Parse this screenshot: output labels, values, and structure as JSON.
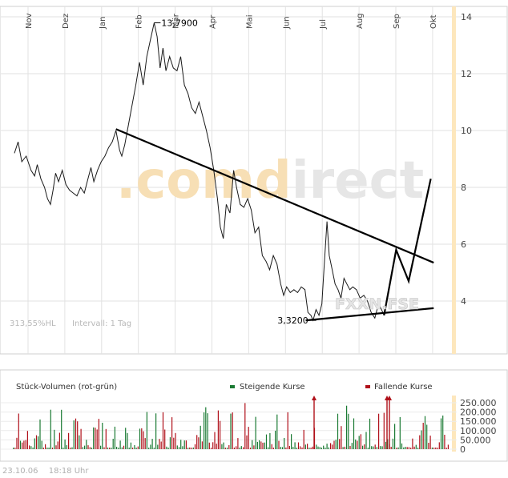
{
  "chart_data": [
    {
      "type": "line",
      "title": "",
      "months": [
        "Nov",
        "Dez",
        "Jan",
        "Feb",
        "Mär",
        "Apr",
        "Mai",
        "Jun",
        "Jul",
        "Aug",
        "Sep",
        "Okt"
      ],
      "yticks": [
        4,
        6,
        8,
        10,
        12,
        14
      ],
      "ylim": [
        2.2,
        14.6
      ],
      "grid": true,
      "price_series": [
        {
          "x": 0.0,
          "y": 9.2
        },
        {
          "x": 0.1,
          "y": 9.6
        },
        {
          "x": 0.2,
          "y": 8.9
        },
        {
          "x": 0.32,
          "y": 9.1
        },
        {
          "x": 0.45,
          "y": 8.6
        },
        {
          "x": 0.55,
          "y": 8.4
        },
        {
          "x": 0.62,
          "y": 8.8
        },
        {
          "x": 0.72,
          "y": 8.3
        },
        {
          "x": 0.82,
          "y": 8.0
        },
        {
          "x": 0.9,
          "y": 7.6
        },
        {
          "x": 0.98,
          "y": 7.4
        },
        {
          "x": 1.05,
          "y": 7.9
        },
        {
          "x": 1.12,
          "y": 8.5
        },
        {
          "x": 1.2,
          "y": 8.2
        },
        {
          "x": 1.3,
          "y": 8.6
        },
        {
          "x": 1.4,
          "y": 8.1
        },
        {
          "x": 1.5,
          "y": 7.9
        },
        {
          "x": 1.6,
          "y": 7.8
        },
        {
          "x": 1.7,
          "y": 7.7
        },
        {
          "x": 1.8,
          "y": 8.0
        },
        {
          "x": 1.9,
          "y": 7.8
        },
        {
          "x": 2.0,
          "y": 8.3
        },
        {
          "x": 2.08,
          "y": 8.7
        },
        {
          "x": 2.16,
          "y": 8.2
        },
        {
          "x": 2.26,
          "y": 8.6
        },
        {
          "x": 2.36,
          "y": 8.9
        },
        {
          "x": 2.46,
          "y": 9.1
        },
        {
          "x": 2.56,
          "y": 9.4
        },
        {
          "x": 2.66,
          "y": 9.6
        },
        {
          "x": 2.76,
          "y": 10.0
        },
        {
          "x": 2.86,
          "y": 9.3
        },
        {
          "x": 2.92,
          "y": 9.1
        },
        {
          "x": 3.0,
          "y": 9.5
        },
        {
          "x": 3.1,
          "y": 10.2
        },
        {
          "x": 3.2,
          "y": 10.9
        },
        {
          "x": 3.3,
          "y": 11.6
        },
        {
          "x": 3.4,
          "y": 12.4
        },
        {
          "x": 3.5,
          "y": 11.6
        },
        {
          "x": 3.6,
          "y": 12.6
        },
        {
          "x": 3.7,
          "y": 13.2
        },
        {
          "x": 3.8,
          "y": 13.79
        },
        {
          "x": 3.88,
          "y": 13.3
        },
        {
          "x": 3.96,
          "y": 12.2
        },
        {
          "x": 4.04,
          "y": 12.9
        },
        {
          "x": 4.12,
          "y": 12.1
        },
        {
          "x": 4.22,
          "y": 12.6
        },
        {
          "x": 4.32,
          "y": 12.2
        },
        {
          "x": 4.42,
          "y": 12.1
        },
        {
          "x": 4.52,
          "y": 12.6
        },
        {
          "x": 4.62,
          "y": 11.6
        },
        {
          "x": 4.72,
          "y": 11.3
        },
        {
          "x": 4.82,
          "y": 10.8
        },
        {
          "x": 4.92,
          "y": 10.6
        },
        {
          "x": 5.02,
          "y": 11.0
        },
        {
          "x": 5.12,
          "y": 10.5
        },
        {
          "x": 5.22,
          "y": 10.0
        },
        {
          "x": 5.32,
          "y": 9.4
        },
        {
          "x": 5.42,
          "y": 8.6
        },
        {
          "x": 5.52,
          "y": 7.6
        },
        {
          "x": 5.6,
          "y": 6.6
        },
        {
          "x": 5.68,
          "y": 6.2
        },
        {
          "x": 5.76,
          "y": 7.4
        },
        {
          "x": 5.86,
          "y": 7.1
        },
        {
          "x": 5.96,
          "y": 8.6
        },
        {
          "x": 6.04,
          "y": 8.0
        },
        {
          "x": 6.14,
          "y": 7.4
        },
        {
          "x": 6.24,
          "y": 7.3
        },
        {
          "x": 6.34,
          "y": 7.6
        },
        {
          "x": 6.44,
          "y": 7.2
        },
        {
          "x": 6.54,
          "y": 6.4
        },
        {
          "x": 6.64,
          "y": 6.6
        },
        {
          "x": 6.74,
          "y": 5.6
        },
        {
          "x": 6.84,
          "y": 5.4
        },
        {
          "x": 6.94,
          "y": 5.1
        },
        {
          "x": 7.04,
          "y": 5.6
        },
        {
          "x": 7.14,
          "y": 5.3
        },
        {
          "x": 7.24,
          "y": 4.6
        },
        {
          "x": 7.32,
          "y": 4.2
        },
        {
          "x": 7.4,
          "y": 4.5
        },
        {
          "x": 7.5,
          "y": 4.3
        },
        {
          "x": 7.6,
          "y": 4.4
        },
        {
          "x": 7.7,
          "y": 4.3
        },
        {
          "x": 7.8,
          "y": 4.5
        },
        {
          "x": 7.9,
          "y": 4.4
        },
        {
          "x": 7.98,
          "y": 3.6
        },
        {
          "x": 8.06,
          "y": 3.5
        },
        {
          "x": 8.12,
          "y": 3.32
        },
        {
          "x": 8.2,
          "y": 3.7
        },
        {
          "x": 8.28,
          "y": 3.5
        },
        {
          "x": 8.36,
          "y": 3.9
        },
        {
          "x": 8.42,
          "y": 5.2
        },
        {
          "x": 8.5,
          "y": 6.8
        },
        {
          "x": 8.56,
          "y": 5.6
        },
        {
          "x": 8.64,
          "y": 5.1
        },
        {
          "x": 8.72,
          "y": 4.6
        },
        {
          "x": 8.8,
          "y": 4.4
        },
        {
          "x": 8.88,
          "y": 4.1
        },
        {
          "x": 8.96,
          "y": 4.8
        },
        {
          "x": 9.04,
          "y": 4.6
        },
        {
          "x": 9.12,
          "y": 4.4
        },
        {
          "x": 9.2,
          "y": 4.5
        },
        {
          "x": 9.3,
          "y": 4.4
        },
        {
          "x": 9.4,
          "y": 4.1
        },
        {
          "x": 9.5,
          "y": 4.2
        },
        {
          "x": 9.6,
          "y": 4.0
        },
        {
          "x": 9.7,
          "y": 3.6
        },
        {
          "x": 9.8,
          "y": 3.4
        },
        {
          "x": 9.9,
          "y": 3.9
        },
        {
          "x": 9.98,
          "y": 3.7
        },
        {
          "x": 10.05,
          "y": 3.5
        }
      ],
      "annotations": {
        "high_label": "13,7900",
        "low_label": "3,3200"
      },
      "trend_lines": [
        {
          "from": {
            "x": 2.76,
            "y": 10.05
          },
          "to": {
            "x": 11.4,
            "y": 5.35
          }
        },
        {
          "from": {
            "x": 7.92,
            "y": 3.32
          },
          "to": {
            "x": 11.4,
            "y": 3.75
          }
        }
      ],
      "projection": [
        {
          "x": 10.05,
          "y": 3.5
        },
        {
          "x": 10.38,
          "y": 5.8
        },
        {
          "x": 10.72,
          "y": 4.7
        },
        {
          "x": 11.32,
          "y": 8.3
        }
      ],
      "status": {
        "change": "313,55%HL",
        "interval": "Intervall: 1 Tag"
      },
      "watermark": ".comdirect",
      "symbol": "FXXN.FSE"
    },
    {
      "type": "bar",
      "title": "Stück-Volumen (rot-grün)",
      "legend": {
        "rising": "Steigende Kurse",
        "falling": "Fallende Kurse"
      },
      "yticks": [
        "250.000",
        "200.000",
        "150.000",
        "100.000",
        "50.000",
        "0"
      ],
      "ytick_values": [
        250000,
        200000,
        150000,
        100000,
        50000,
        0
      ],
      "ylim": [
        0,
        250000
      ],
      "colors": {
        "rising": "#1a7a33",
        "falling": "#b0101a"
      },
      "seed": 20061023,
      "bar_count": 245
    }
  ],
  "footer": {
    "date": "23.10.06",
    "time": "18:18 Uhr"
  }
}
